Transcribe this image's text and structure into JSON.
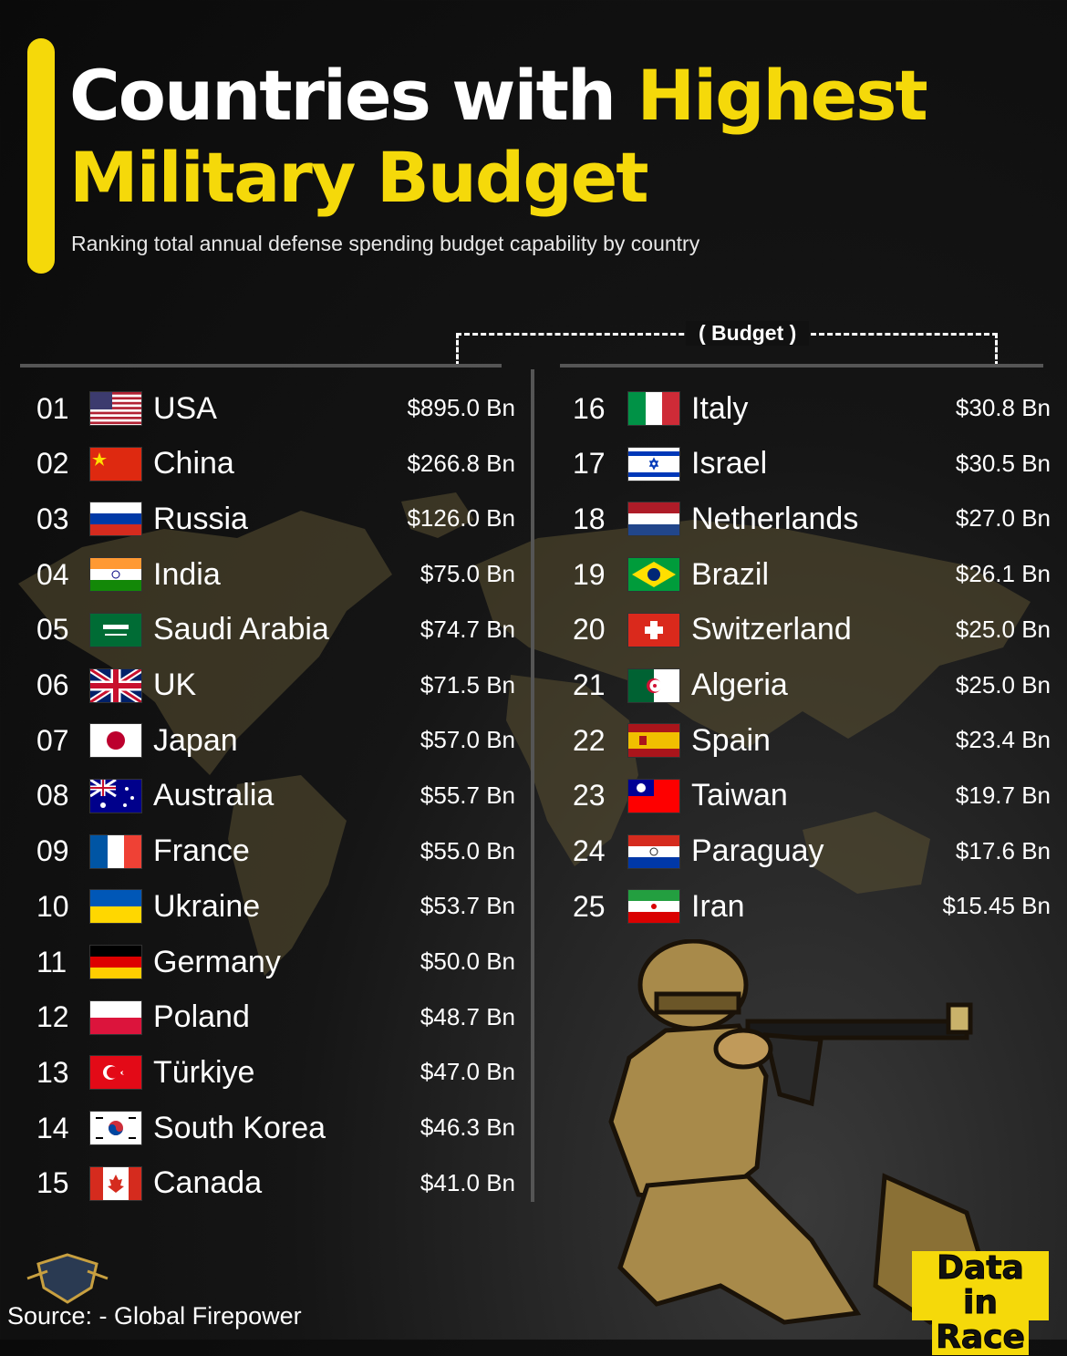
{
  "title_part1": "Countries with ",
  "title_part2": "Highest",
  "title_part3": "Military Budget",
  "subtitle": "Ranking total annual defense spending budget capability by country",
  "budget_label": "( Budget )",
  "source": "Source: - Global Firepower",
  "logo": {
    "line1": "Data in",
    "line2": "Race"
  },
  "colors": {
    "accent": "#f5d90a",
    "background": "#111111",
    "map": "#5b5132"
  },
  "chart_data": {
    "type": "table",
    "columns": [
      "rank",
      "country",
      "budget"
    ],
    "rows": [
      {
        "rank": "01",
        "country": "USA",
        "budget": "$895.0 Bn",
        "flag": "flag-usa"
      },
      {
        "rank": "02",
        "country": "China",
        "budget": "$266.8 Bn",
        "flag": "flag-china"
      },
      {
        "rank": "03",
        "country": "Russia",
        "budget": "$126.0 Bn",
        "flag": "flag-russia"
      },
      {
        "rank": "04",
        "country": "India",
        "budget": "$75.0 Bn",
        "flag": "flag-india"
      },
      {
        "rank": "05",
        "country": "Saudi Arabia",
        "budget": "$74.7 Bn",
        "flag": "flag-saudi-arabia"
      },
      {
        "rank": "06",
        "country": "UK",
        "budget": "$71.5 Bn",
        "flag": "flag-uk"
      },
      {
        "rank": "07",
        "country": "Japan",
        "budget": "$57.0 Bn",
        "flag": "flag-japan"
      },
      {
        "rank": "08",
        "country": "Australia",
        "budget": "$55.7 Bn",
        "flag": "flag-australia"
      },
      {
        "rank": "09",
        "country": "France",
        "budget": "$55.0 Bn",
        "flag": "flag-france"
      },
      {
        "rank": "10",
        "country": "Ukraine",
        "budget": "$53.7 Bn",
        "flag": "flag-ukraine"
      },
      {
        "rank": "11",
        "country": "Germany",
        "budget": "$50.0 Bn",
        "flag": "flag-germany"
      },
      {
        "rank": "12",
        "country": "Poland",
        "budget": "$48.7 Bn",
        "flag": "flag-poland"
      },
      {
        "rank": "13",
        "country": "Türkiye",
        "budget": "$47.0 Bn",
        "flag": "flag-turkiye"
      },
      {
        "rank": "14",
        "country": "South Korea",
        "budget": "$46.3 Bn",
        "flag": "flag-south-korea"
      },
      {
        "rank": "15",
        "country": "Canada",
        "budget": "$41.0 Bn",
        "flag": "flag-canada"
      },
      {
        "rank": "16",
        "country": "Italy",
        "budget": "$30.8 Bn",
        "flag": "flag-italy"
      },
      {
        "rank": "17",
        "country": "Israel",
        "budget": "$30.5 Bn",
        "flag": "flag-israel"
      },
      {
        "rank": "18",
        "country": "Netherlands",
        "budget": "$27.0 Bn",
        "flag": "flag-netherlands"
      },
      {
        "rank": "19",
        "country": "Brazil",
        "budget": "$26.1 Bn",
        "flag": "flag-brazil"
      },
      {
        "rank": "20",
        "country": "Switzerland",
        "budget": "$25.0 Bn",
        "flag": "flag-switzerland"
      },
      {
        "rank": "21",
        "country": "Algeria",
        "budget": "$25.0 Bn",
        "flag": "flag-algeria"
      },
      {
        "rank": "22",
        "country": "Spain",
        "budget": "$23.4 Bn",
        "flag": "flag-spain"
      },
      {
        "rank": "23",
        "country": "Taiwan",
        "budget": "$19.7 Bn",
        "flag": "flag-taiwan"
      },
      {
        "rank": "24",
        "country": "Paraguay",
        "budget": "$17.6 Bn",
        "flag": "flag-paraguay"
      },
      {
        "rank": "25",
        "country": "Iran",
        "budget": "$15.45 Bn",
        "flag": "flag-iran"
      }
    ]
  }
}
